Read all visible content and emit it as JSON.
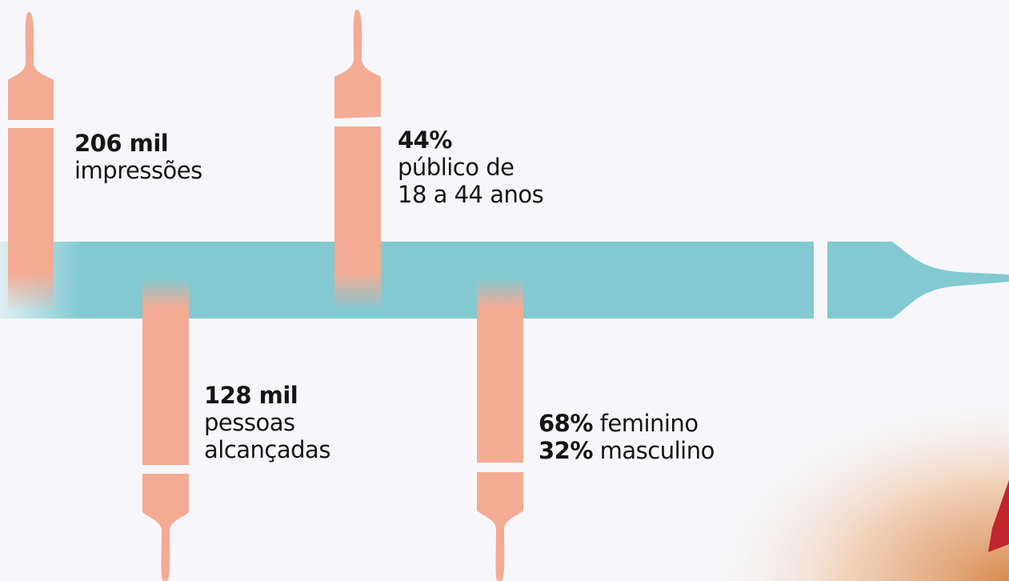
{
  "stats": [
    {
      "value": "206 mil",
      "lines": [
        "impressões"
      ]
    },
    {
      "value": "44%",
      "lines": [
        "público de",
        "18 a 44 anos"
      ]
    },
    {
      "value": "128 mil",
      "lines": [
        "pessoas",
        "alcançadas"
      ]
    }
  ],
  "gender": [
    {
      "value": "68%",
      "label": "feminino"
    },
    {
      "value": "32%",
      "label": "masculino"
    }
  ]
}
